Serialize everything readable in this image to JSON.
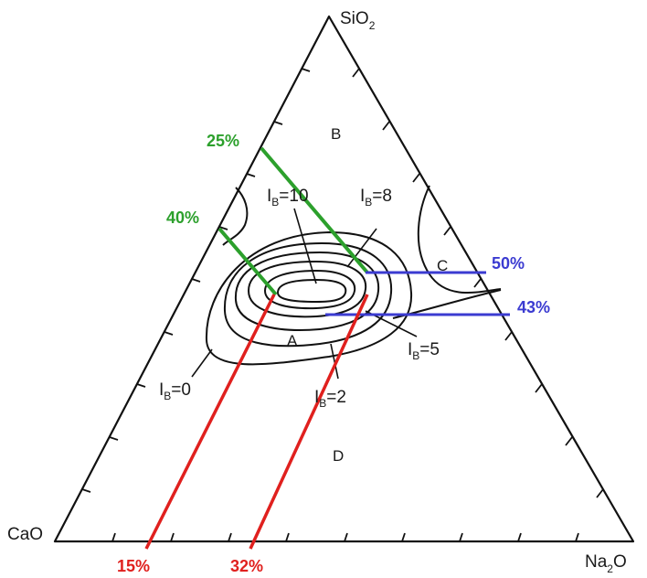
{
  "vertices": {
    "top": {
      "label": "SiO",
      "sub": "2"
    },
    "left": {
      "label": "CaO"
    },
    "right": {
      "label": "Na",
      "sub": "2",
      "after": "O"
    }
  },
  "regions": [
    "A",
    "B",
    "C",
    "D"
  ],
  "contours": [
    {
      "prefix": "I",
      "sub": "B",
      "suffix": "=10"
    },
    {
      "prefix": "I",
      "sub": "B",
      "suffix": "=8"
    },
    {
      "prefix": "I",
      "sub": "B",
      "suffix": "=5"
    },
    {
      "prefix": "I",
      "sub": "B",
      "suffix": "=0"
    },
    {
      "prefix": "I",
      "sub": "B",
      "suffix": "=2"
    }
  ],
  "annotations": {
    "green": [
      "25%",
      "40%"
    ],
    "blue": [
      "50%",
      "43%"
    ],
    "red": [
      "15%",
      "32%"
    ]
  },
  "colors": {
    "green": "#2ca02c",
    "blue": "#3b3bd1",
    "red": "#e0201e",
    "ink": "#111111"
  }
}
